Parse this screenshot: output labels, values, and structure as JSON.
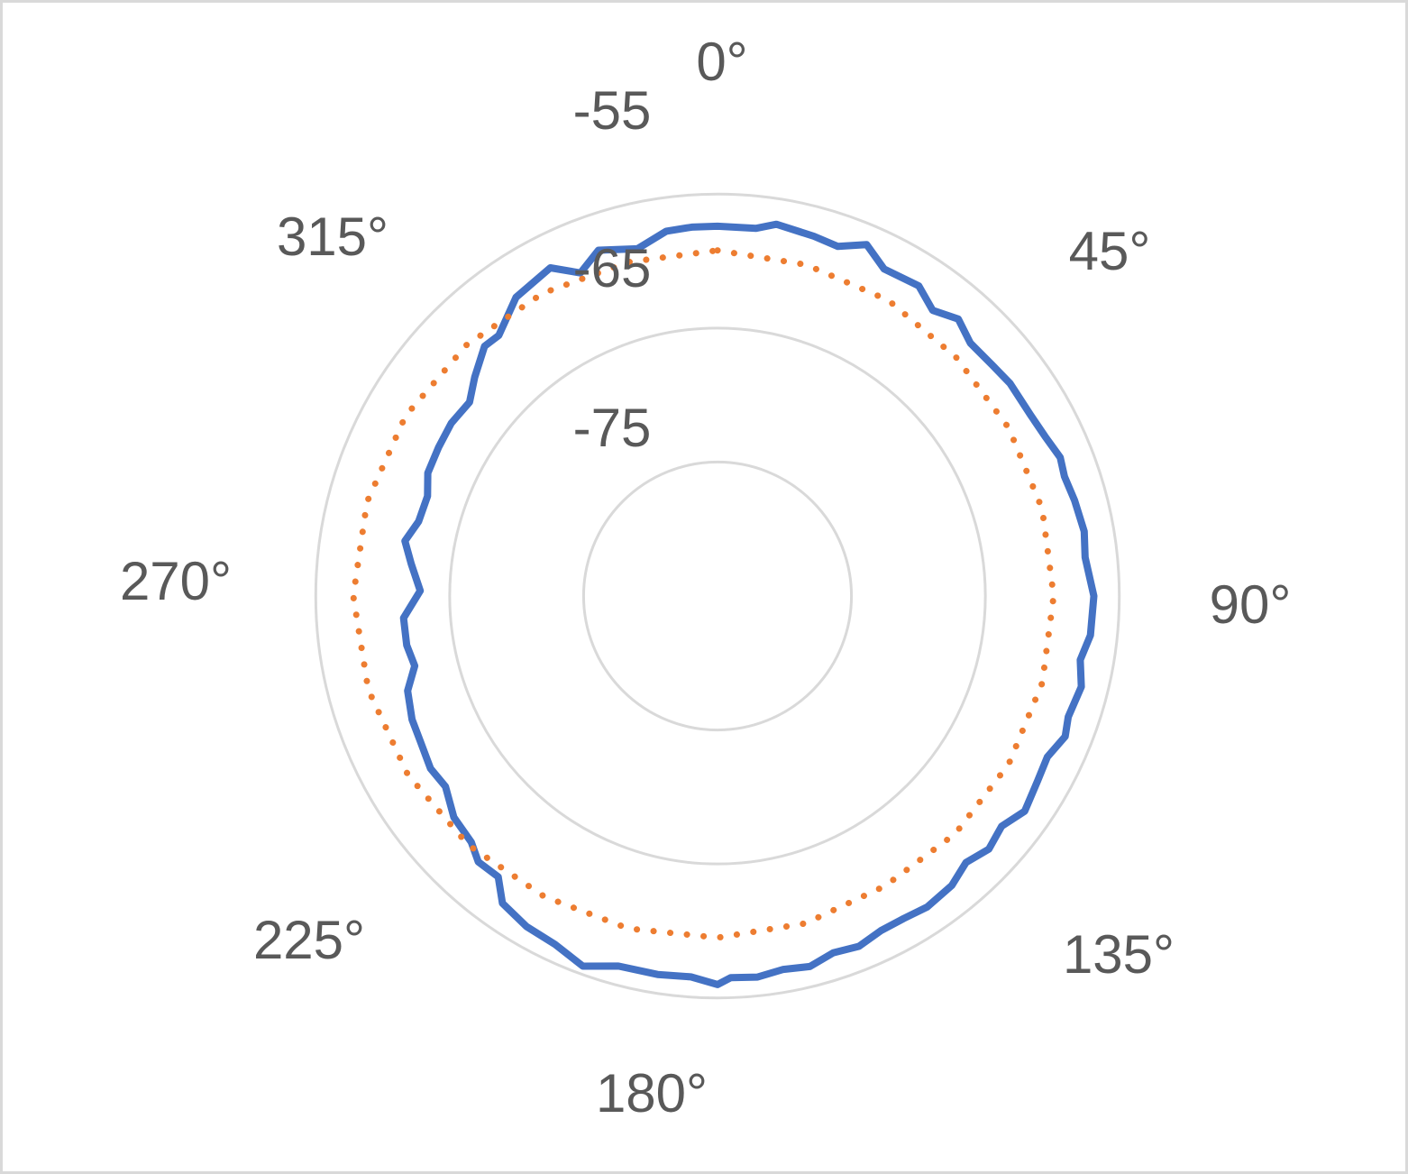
{
  "chart_data": {
    "type": "polar-line",
    "title": "",
    "radial_axis": {
      "min": -85,
      "max": -50,
      "ring_values": [
        -85,
        -75,
        -65,
        -55
      ],
      "tick_labels": [
        "-75",
        "-65",
        "-55"
      ]
    },
    "angular_axis": {
      "direction": "clockwise",
      "zero": "top",
      "tick_labels": [
        "0°",
        "45°",
        "90°",
        "135°",
        "180°",
        "225°",
        "270°",
        "315°"
      ]
    },
    "grid": true,
    "legend": "none",
    "series": [
      {
        "color": "#4472c4",
        "style": "solid",
        "points": [
          [
            0,
            -57.4
          ],
          [
            6,
            -57.4
          ],
          [
            9,
            -56.9
          ],
          [
            15,
            -57.2
          ],
          [
            19,
            -57.4
          ],
          [
            23,
            -56.5
          ],
          [
            27,
            -57.6
          ],
          [
            33,
            -57.4
          ],
          [
            37,
            -58.3
          ],
          [
            41,
            -57.6
          ],
          [
            45,
            -58.3
          ],
          [
            50,
            -58.2
          ],
          [
            54,
            -58.0
          ],
          [
            60,
            -58.0
          ],
          [
            64,
            -57.8
          ],
          [
            68,
            -57.4
          ],
          [
            71,
            -57.6
          ],
          [
            75,
            -57.4
          ],
          [
            80,
            -57.2
          ],
          [
            84,
            -57.4
          ],
          [
            90,
            -56.9
          ],
          [
            96,
            -57.0
          ],
          [
            100,
            -57.5
          ],
          [
            104,
            -57.0
          ],
          [
            109,
            -57.3
          ],
          [
            112,
            -57.0
          ],
          [
            116,
            -57.6
          ],
          [
            120,
            -57.4
          ],
          [
            125,
            -57.0
          ],
          [
            129,
            -57.7
          ],
          [
            133,
            -57.3
          ],
          [
            137,
            -57.8
          ],
          [
            141,
            -57.2
          ],
          [
            146,
            -57.0
          ],
          [
            150,
            -57.2
          ],
          [
            154,
            -57.2
          ],
          [
            158,
            -56.8
          ],
          [
            162,
            -57.0
          ],
          [
            166,
            -56.5
          ],
          [
            170,
            -56.7
          ],
          [
            174,
            -56.4
          ],
          [
            178,
            -56.5
          ],
          [
            180,
            -56.0
          ],
          [
            184,
            -56.5
          ],
          [
            189,
            -56.4
          ],
          [
            195,
            -56.4
          ],
          [
            200,
            -55.6
          ],
          [
            205,
            -56.3
          ],
          [
            210,
            -56.5
          ],
          [
            215,
            -57.0
          ],
          [
            218,
            -58.4
          ],
          [
            222,
            -58.3
          ],
          [
            225,
            -59.0
          ],
          [
            230,
            -59.3
          ],
          [
            235,
            -60.2
          ],
          [
            239,
            -60.0
          ],
          [
            244,
            -60.3
          ],
          [
            248,
            -60.4
          ],
          [
            253,
            -60.8
          ],
          [
            257,
            -61.8
          ],
          [
            261,
            -61.5
          ],
          [
            266,
            -61.5
          ],
          [
            271,
            -62.8
          ],
          [
            276,
            -62.0
          ],
          [
            280,
            -61.3
          ],
          [
            284,
            -62.0
          ],
          [
            289,
            -62.1
          ],
          [
            293,
            -61.5
          ],
          [
            298,
            -61.4
          ],
          [
            303,
            -61.3
          ],
          [
            308,
            -61.5
          ],
          [
            312,
            -60.6
          ],
          [
            317,
            -59.5
          ],
          [
            320,
            -59.6
          ],
          [
            326,
            -58.1
          ],
          [
            333,
            -57.5
          ],
          [
            337,
            -58.8
          ],
          [
            341,
            -57.7
          ],
          [
            347,
            -58.4
          ],
          [
            352,
            -57.5
          ],
          [
            356,
            -57.4
          ],
          [
            360,
            -57.4
          ]
        ]
      },
      {
        "color": "#ed7d31",
        "style": "dotted",
        "points": [
          [
            0,
            -59.2
          ],
          [
            15,
            -59.4
          ],
          [
            30,
            -59.5
          ],
          [
            45,
            -59.8
          ],
          [
            60,
            -59.9
          ],
          [
            75,
            -59.9
          ],
          [
            90,
            -59.9
          ],
          [
            105,
            -59.9
          ],
          [
            120,
            -59.9
          ],
          [
            135,
            -59.9
          ],
          [
            150,
            -60.0
          ],
          [
            165,
            -59.7
          ],
          [
            180,
            -59.5
          ],
          [
            195,
            -59.3
          ],
          [
            210,
            -59.1
          ],
          [
            225,
            -58.7
          ],
          [
            240,
            -58.3
          ],
          [
            255,
            -58.0
          ],
          [
            270,
            -57.8
          ],
          [
            285,
            -57.9
          ],
          [
            300,
            -58.1
          ],
          [
            315,
            -58.5
          ],
          [
            330,
            -58.9
          ],
          [
            345,
            -59.2
          ],
          [
            360,
            -59.2
          ]
        ]
      }
    ]
  }
}
